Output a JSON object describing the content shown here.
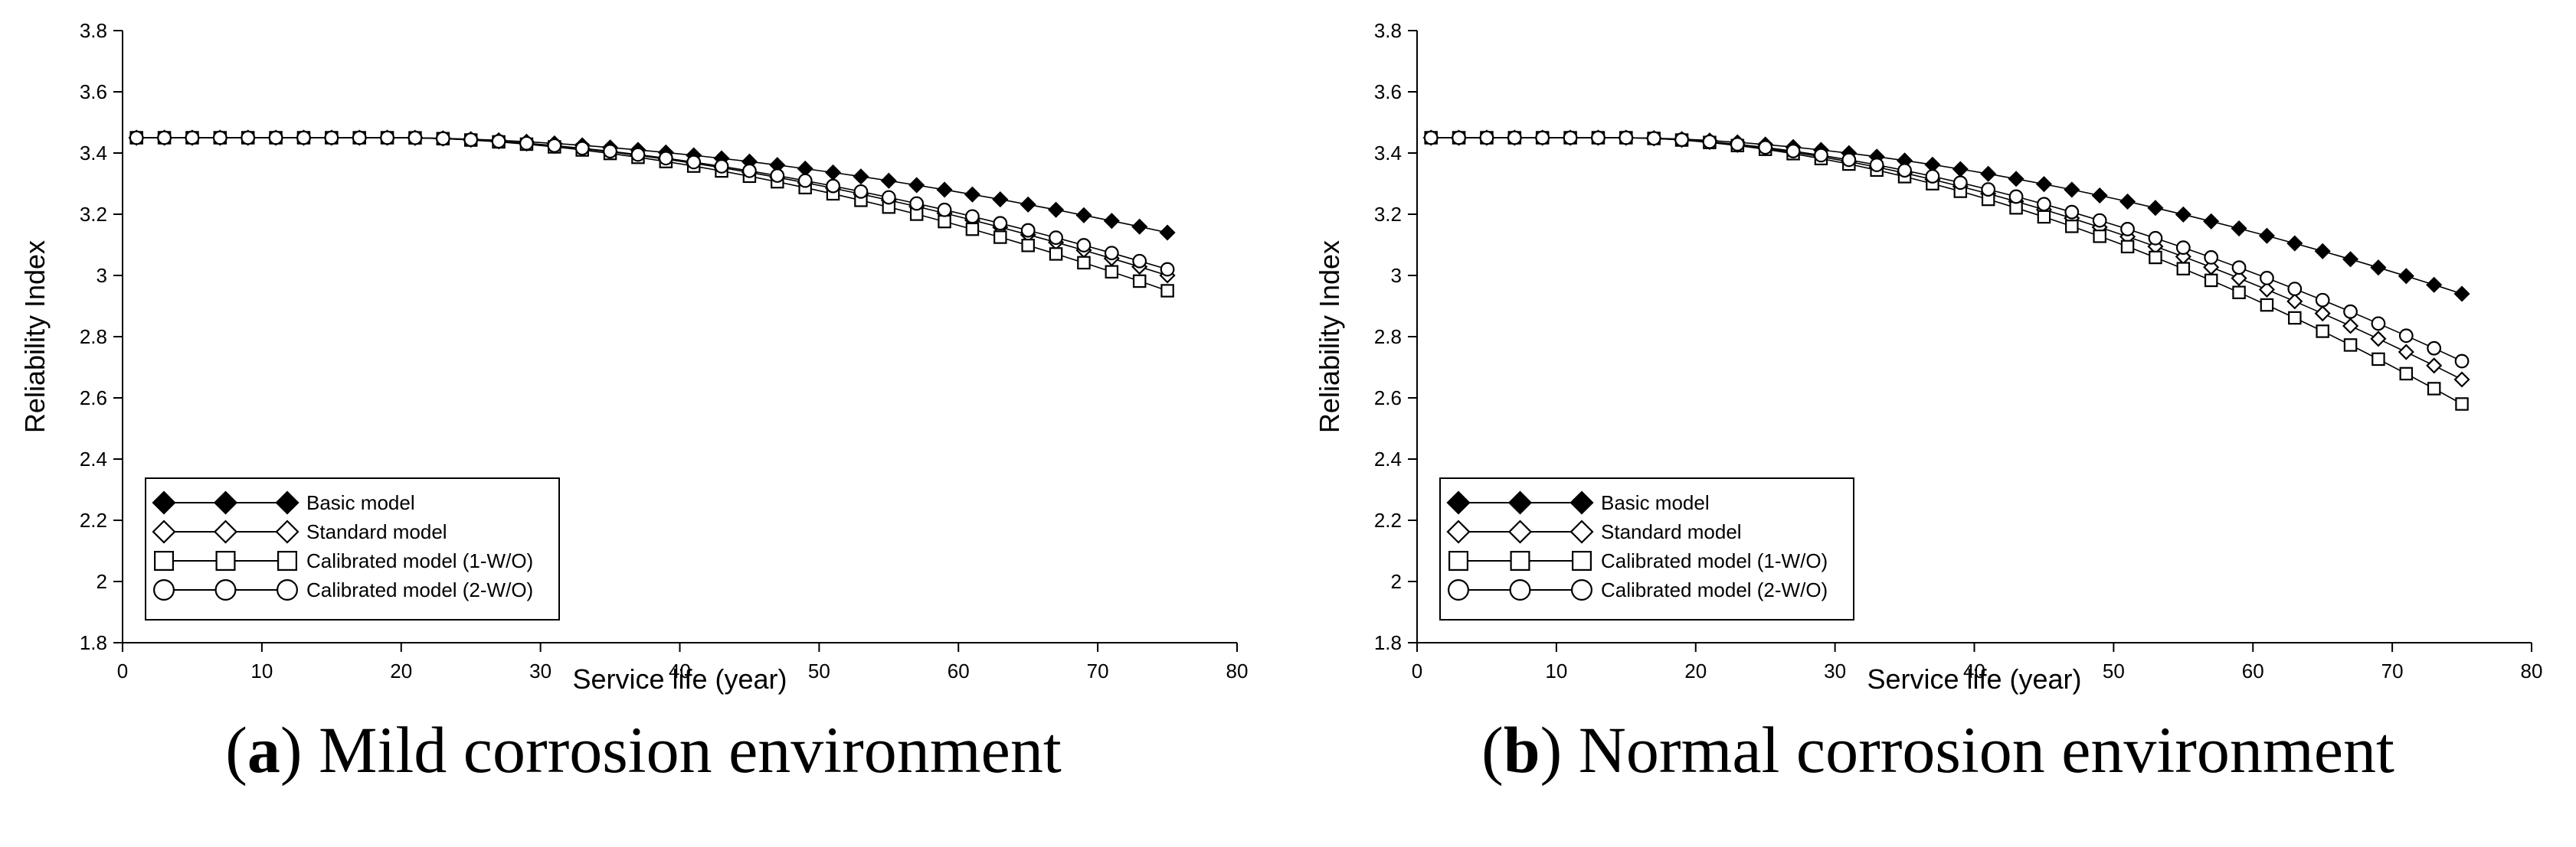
{
  "chart_data": [
    {
      "panel": "a",
      "type": "line",
      "caption_letter": "a",
      "caption_text": "Mild corrosion environment",
      "xlabel": "Service life (year)",
      "ylabel": "Reliability Index",
      "xlim": [
        0,
        80
      ],
      "ylim": [
        1.8,
        3.8
      ],
      "xticks": [
        0,
        10,
        20,
        30,
        40,
        50,
        60,
        70,
        80
      ],
      "yticks": [
        1.8,
        2,
        2.2,
        2.4,
        2.6,
        2.8,
        3,
        3.2,
        3.4,
        3.6,
        3.8
      ],
      "xtick_labels": [
        "0",
        "10",
        "20",
        "30",
        "40",
        "50",
        "60",
        "70",
        "80"
      ],
      "ytick_labels": [
        "1.8",
        "2",
        "2.2",
        "2.4",
        "2.6",
        "2.8",
        "3",
        "3.2",
        "3.4",
        "3.6",
        "3.8"
      ],
      "grid": false,
      "legend_position": "bottom-left",
      "x_start": 1,
      "x_step": 2,
      "x_end": 75,
      "series": [
        {
          "name": "Basic model",
          "marker": "diamond-filled",
          "start": 3.45,
          "t0": 20,
          "end": 3.14
        },
        {
          "name": "Standard model",
          "marker": "diamond-open",
          "start": 3.45,
          "t0": 20,
          "end": 3.0
        },
        {
          "name": "Calibrated model (1-W/O)",
          "marker": "square-open",
          "start": 3.45,
          "t0": 20,
          "end": 2.95
        },
        {
          "name": "Calibrated model (2-W/O)",
          "marker": "circle-open",
          "start": 3.45,
          "t0": 20,
          "end": 3.02
        }
      ]
    },
    {
      "panel": "b",
      "type": "line",
      "caption_letter": "b",
      "caption_text": "Normal corrosion environment",
      "xlabel": "Service life (year)",
      "ylabel": "Reliability Index",
      "xlim": [
        0,
        80
      ],
      "ylim": [
        1.8,
        3.8
      ],
      "xticks": [
        0,
        10,
        20,
        30,
        40,
        50,
        60,
        70,
        80
      ],
      "yticks": [
        1.8,
        2,
        2.2,
        2.4,
        2.6,
        2.8,
        3,
        3.2,
        3.4,
        3.6,
        3.8
      ],
      "xtick_labels": [
        "0",
        "10",
        "20",
        "30",
        "40",
        "50",
        "60",
        "70",
        "80"
      ],
      "ytick_labels": [
        "1.8",
        "2",
        "2.2",
        "2.4",
        "2.6",
        "2.8",
        "3",
        "3.2",
        "3.4",
        "3.6",
        "3.8"
      ],
      "grid": false,
      "legend_position": "bottom-left",
      "x_start": 1,
      "x_step": 2,
      "x_end": 75,
      "series": [
        {
          "name": "Basic model",
          "marker": "diamond-filled",
          "start": 3.45,
          "t0": 15,
          "end": 2.94
        },
        {
          "name": "Standard model",
          "marker": "diamond-open",
          "start": 3.45,
          "t0": 15,
          "end": 2.66
        },
        {
          "name": "Calibrated model (1-W/O)",
          "marker": "square-open",
          "start": 3.45,
          "t0": 15,
          "end": 2.58
        },
        {
          "name": "Calibrated model (2-W/O)",
          "marker": "circle-open",
          "start": 3.45,
          "t0": 15,
          "end": 2.72
        }
      ]
    }
  ]
}
